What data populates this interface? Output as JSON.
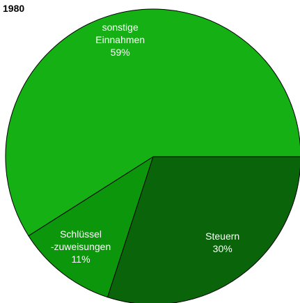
{
  "chart_data": {
    "type": "pie",
    "title": "1980",
    "categories": [
      "Steuern",
      "Schlüssel -zuweisungen",
      "sonstige Einnahmen"
    ],
    "values": [
      30,
      11,
      59
    ],
    "value_labels": [
      "30%",
      "11%",
      "59%"
    ],
    "colors": [
      "#0a650a",
      "#0b960b",
      "#14b014"
    ]
  }
}
